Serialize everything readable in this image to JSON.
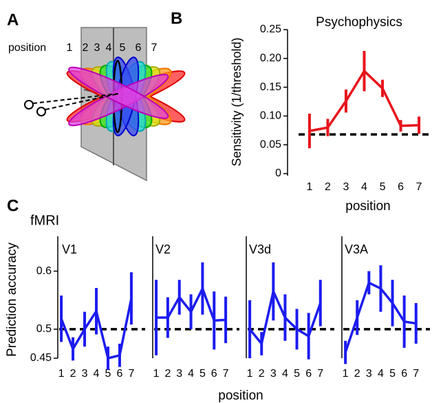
{
  "panel_labels": [
    "A",
    "B",
    "C"
  ],
  "panel_a": {
    "label": "position",
    "positions": [
      1,
      2,
      3,
      4,
      5,
      6,
      7
    ]
  },
  "panel_c": {
    "title": "fMRI",
    "y_label": "Prediction accuracy",
    "x_label": "position"
  },
  "chart_data": [
    {
      "type": "line",
      "title": "Psychophysics",
      "y_label": "Sensitivity (1/threshold)",
      "x_label": "position",
      "x": [
        1,
        2,
        3,
        4,
        5,
        6,
        7
      ],
      "xlim": [
        0.4,
        7.6
      ],
      "xticks": [
        1,
        2,
        3,
        4,
        5,
        6,
        7
      ],
      "ylim": [
        0,
        0.25
      ],
      "yticks": [
        0,
        0.05,
        {
          "value": 0.1,
          "label": "0.10"
        },
        0.15,
        {
          "value": 0.2,
          "label": "0.20"
        },
        0.25
      ],
      "reference_line": 0.068,
      "series": [
        {
          "color": "#e8141c",
          "values": [
            0.074,
            0.08,
            0.126,
            0.178,
            0.148,
            0.083,
            0.084
          ],
          "errors": [
            0.03,
            0.015,
            0.02,
            0.035,
            0.015,
            0.01,
            0.015
          ]
        }
      ]
    },
    {
      "type": "line",
      "title": "V1",
      "x": [
        1,
        2,
        3,
        4,
        5,
        6,
        7
      ],
      "xlim": [
        0.7,
        8.3
      ],
      "xticks": [
        1,
        2,
        3,
        4,
        5,
        6,
        7
      ],
      "ylim": [
        0.45,
        0.66
      ],
      "yticks": [
        0.45,
        0.5,
        0.6
      ],
      "reference_line": 0.5,
      "series": [
        {
          "color": "#1c1cf0",
          "values": [
            0.518,
            0.466,
            0.5,
            0.531,
            0.45,
            0.455,
            0.553
          ],
          "errors": [
            0.04,
            0.02,
            0.03,
            0.04,
            0.02,
            0.02,
            0.045
          ]
        }
      ]
    },
    {
      "type": "line",
      "title": "V2",
      "x": [
        1,
        2,
        3,
        4,
        5,
        6,
        7
      ],
      "xlim": [
        0.7,
        8.3
      ],
      "xticks": [
        1,
        2,
        3,
        4,
        5,
        6,
        7
      ],
      "ylim": [
        0.45,
        0.66
      ],
      "reference_line": 0.5,
      "series": [
        {
          "color": "#1c1cf0",
          "values": [
            0.52,
            0.52,
            0.555,
            0.53,
            0.57,
            0.515,
            0.516
          ],
          "errors": [
            0.065,
            0.035,
            0.03,
            0.03,
            0.045,
            0.05,
            0.04
          ]
        }
      ]
    },
    {
      "type": "line",
      "title": "V3d",
      "x": [
        1,
        2,
        3,
        4,
        5,
        6,
        7
      ],
      "xlim": [
        0.7,
        8.3
      ],
      "xticks": [
        1,
        2,
        3,
        4,
        5,
        6,
        7
      ],
      "ylim": [
        0.45,
        0.66
      ],
      "reference_line": 0.5,
      "series": [
        {
          "color": "#1c1cf0",
          "values": [
            0.5,
            0.475,
            0.565,
            0.52,
            0.5,
            0.488,
            0.545
          ],
          "errors": [
            0.05,
            0.02,
            0.05,
            0.04,
            0.035,
            0.04,
            0.04
          ]
        }
      ]
    },
    {
      "type": "line",
      "title": "V3A",
      "x": [
        1,
        2,
        3,
        4,
        5,
        6,
        7
      ],
      "xlim": [
        0.7,
        8.3
      ],
      "xticks": [
        1,
        2,
        3,
        4,
        5,
        6,
        7
      ],
      "ylim": [
        0.45,
        0.66
      ],
      "reference_line": 0.5,
      "series": [
        {
          "color": "#1c1cf0",
          "values": [
            0.46,
            0.52,
            0.58,
            0.57,
            0.545,
            0.513,
            0.51
          ],
          "errors": [
            0.02,
            0.03,
            0.02,
            0.04,
            0.04,
            0.045,
            0.035
          ]
        }
      ]
    }
  ]
}
